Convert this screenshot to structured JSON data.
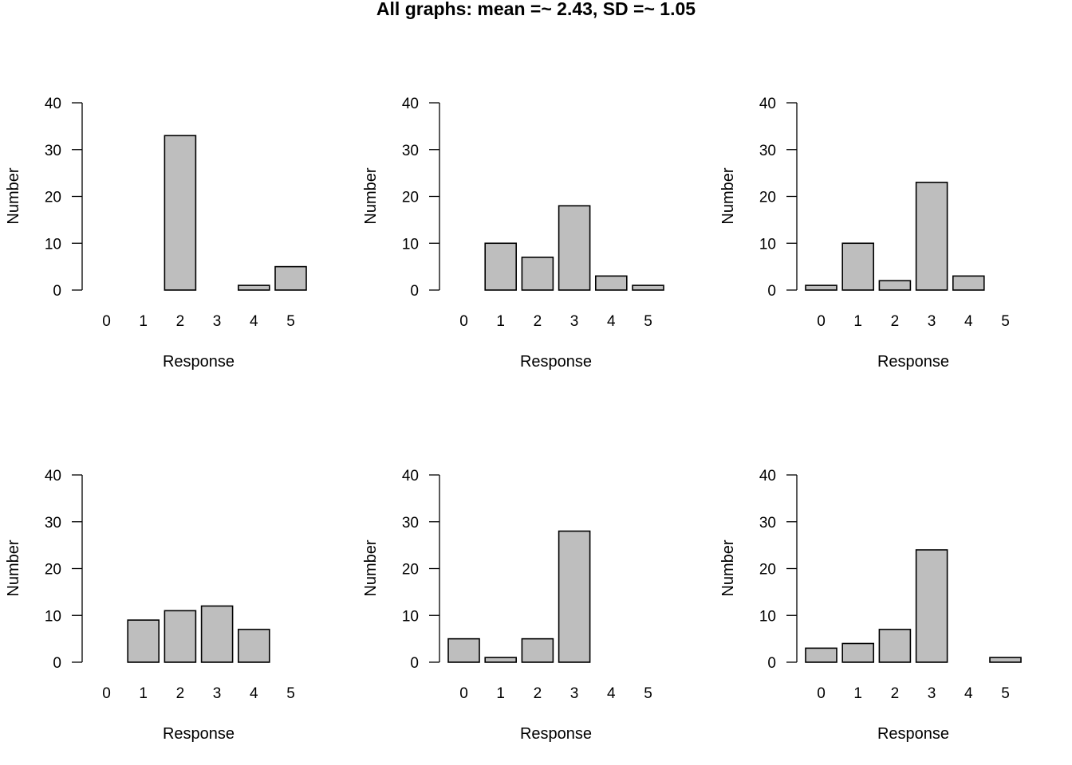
{
  "title": "All graphs: mean =~ 2.43, SD =~ 1.05",
  "colors": {
    "bar_fill": "#bebebe",
    "bar_stroke": "#000000"
  },
  "chart_data": [
    {
      "type": "bar",
      "categories": [
        "0",
        "1",
        "2",
        "3",
        "4",
        "5"
      ],
      "values": [
        0,
        0,
        33,
        0,
        1,
        5
      ],
      "xlabel": "Response",
      "ylabel": "Number",
      "ylim": [
        0,
        40
      ],
      "yticks": [
        0,
        10,
        20,
        30,
        40
      ]
    },
    {
      "type": "bar",
      "categories": [
        "0",
        "1",
        "2",
        "3",
        "4",
        "5"
      ],
      "values": [
        0,
        10,
        7,
        18,
        3,
        1
      ],
      "xlabel": "Response",
      "ylabel": "Number",
      "ylim": [
        0,
        40
      ],
      "yticks": [
        0,
        10,
        20,
        30,
        40
      ]
    },
    {
      "type": "bar",
      "categories": [
        "0",
        "1",
        "2",
        "3",
        "4",
        "5"
      ],
      "values": [
        1,
        10,
        2,
        23,
        3,
        0
      ],
      "xlabel": "Response",
      "ylabel": "Number",
      "ylim": [
        0,
        40
      ],
      "yticks": [
        0,
        10,
        20,
        30,
        40
      ]
    },
    {
      "type": "bar",
      "categories": [
        "0",
        "1",
        "2",
        "3",
        "4",
        "5"
      ],
      "values": [
        0,
        9,
        11,
        12,
        7,
        0
      ],
      "xlabel": "Response",
      "ylabel": "Number",
      "ylim": [
        0,
        40
      ],
      "yticks": [
        0,
        10,
        20,
        30,
        40
      ]
    },
    {
      "type": "bar",
      "categories": [
        "0",
        "1",
        "2",
        "3",
        "4",
        "5"
      ],
      "values": [
        5,
        1,
        5,
        28,
        0,
        0
      ],
      "xlabel": "Response",
      "ylabel": "Number",
      "ylim": [
        0,
        40
      ],
      "yticks": [
        0,
        10,
        20,
        30,
        40
      ]
    },
    {
      "type": "bar",
      "categories": [
        "0",
        "1",
        "2",
        "3",
        "4",
        "5"
      ],
      "values": [
        3,
        4,
        7,
        24,
        0,
        1
      ],
      "xlabel": "Response",
      "ylabel": "Number",
      "ylim": [
        0,
        40
      ],
      "yticks": [
        0,
        10,
        20,
        30,
        40
      ]
    }
  ]
}
